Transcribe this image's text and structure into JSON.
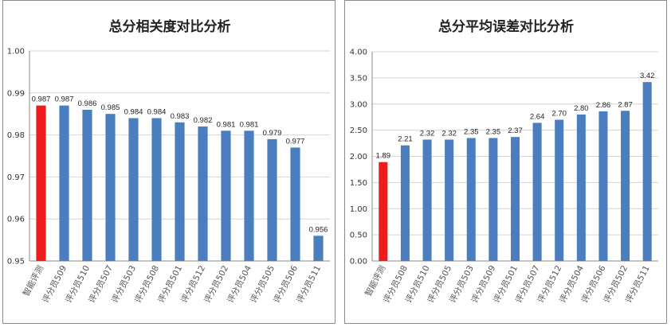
{
  "colors": {
    "highlight": "#ee1c1c",
    "bar": "#4a7ebf",
    "grid": "#d4d4d4"
  },
  "chart_data": [
    {
      "type": "bar",
      "title": "总分相关度对比分析",
      "categories": [
        "智能评测",
        "评分员509",
        "评分员510",
        "评分员507",
        "评分员503",
        "评分员508",
        "评分员501",
        "评分员512",
        "评分员502",
        "评分员504",
        "评分员505",
        "评分员506",
        "评分员511"
      ],
      "values": [
        0.987,
        0.987,
        0.986,
        0.985,
        0.984,
        0.984,
        0.983,
        0.982,
        0.981,
        0.981,
        0.979,
        0.977,
        0.956
      ],
      "value_labels": [
        "0.987",
        "0.987",
        "0.986",
        "0.985",
        "0.984",
        "0.984",
        "0.983",
        "0.982",
        "0.981",
        "0.981",
        "0.979",
        "0.977",
        "0.956"
      ],
      "highlight_index": 0,
      "ylim": [
        0.95,
        1.0
      ],
      "yticks": [
        "0.95",
        "0.96",
        "0.97",
        "0.98",
        "0.99",
        "1.00"
      ],
      "ytick_values": [
        0.95,
        0.96,
        0.97,
        0.98,
        0.99,
        1.0
      ],
      "xlabel": "",
      "ylabel": "",
      "grid": true,
      "legend": "none"
    },
    {
      "type": "bar",
      "title": "总分平均误差对比分析",
      "categories": [
        "智能评测",
        "评分员508",
        "评分员510",
        "评分员505",
        "评分员503",
        "评分员509",
        "评分员501",
        "评分员507",
        "评分员512",
        "评分员504",
        "评分员506",
        "评分员502",
        "评分员511"
      ],
      "values": [
        1.89,
        2.21,
        2.32,
        2.32,
        2.35,
        2.35,
        2.37,
        2.64,
        2.7,
        2.8,
        2.86,
        2.87,
        3.42
      ],
      "value_labels": [
        "1.89",
        "2.21",
        "2.32",
        "2.32",
        "2.35",
        "2.35",
        "2.37",
        "2.64",
        "2.70",
        "2.80",
        "2.86",
        "2.87",
        "3.42"
      ],
      "highlight_index": 0,
      "ylim": [
        0.0,
        4.0
      ],
      "yticks": [
        "0.00",
        "0.50",
        "1.00",
        "1.50",
        "2.00",
        "2.50",
        "3.00",
        "3.50",
        "4.00"
      ],
      "ytick_values": [
        0,
        0.5,
        1,
        1.5,
        2,
        2.5,
        3,
        3.5,
        4
      ],
      "xlabel": "",
      "ylabel": "",
      "grid": true,
      "legend": "none"
    }
  ]
}
